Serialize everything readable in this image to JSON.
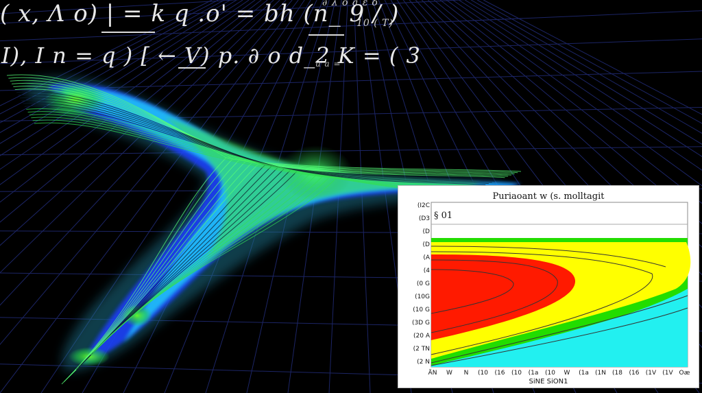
{
  "equations": {
    "line1_main": "(\\,x,\\,\\Lambda\\,o)\\;|\\;=\\,k\\;q\\,.o'\\;=\\;bh\\,(n_\\,\\,9\\!/\\!)",
    "line1_super": "\\partial\\,\\lambda\\,o\\,a\\,\\varepsilon\\,\\delta",
    "line1_sub": "10\\,(\\,T)",
    "line2_main": "I),\\;I\\!n\\,=\\,q\\,)\\,[\\!\\!\\leftarrow\\!\\!\\; \\;\\;\\; V)\\;\\;\\; p.\\,\\partial\\!o\\!d_2\\;\\; \\!\\!\\!\\!K\\; =\\,(\\,3",
    "line2_sub": "u\\!\\!\\!\\!\\!\\!\\!\\!\\!\\;\\;\\, a\\,\\,\\;\\;\\; ="
  },
  "inset": {
    "title": "Puriaoant w (s. molltagit",
    "annotation": "§ 01",
    "xlabel": "SiNE SiON1",
    "y_ticks": [
      "(I2C",
      "(D3",
      "(D",
      "(D",
      "(A",
      "(4",
      "(0 G",
      "(10G",
      "(10 G",
      "(3D G",
      "(20 A",
      "(2 TN",
      "(2 N"
    ],
    "x_ticks": [
      "ÄN",
      "W",
      "N",
      "(10",
      "(16",
      "(10",
      "(1a",
      "(10",
      "W",
      "(1a",
      "(1N",
      "(18",
      "(16",
      "(1V",
      "(1V",
      "Oæ"
    ]
  },
  "colors": {
    "background": "#000000",
    "grid": "#1c2566",
    "contour_line": "#1a2a22",
    "band_blue": "#1a3cff",
    "band_cyan": "#22e6ff",
    "band_green": "#44ee22",
    "inset_red": "#ff1a00",
    "inset_yellow": "#ffff00",
    "inset_green": "#22dd00",
    "inset_cyan": "#22f0f0"
  }
}
